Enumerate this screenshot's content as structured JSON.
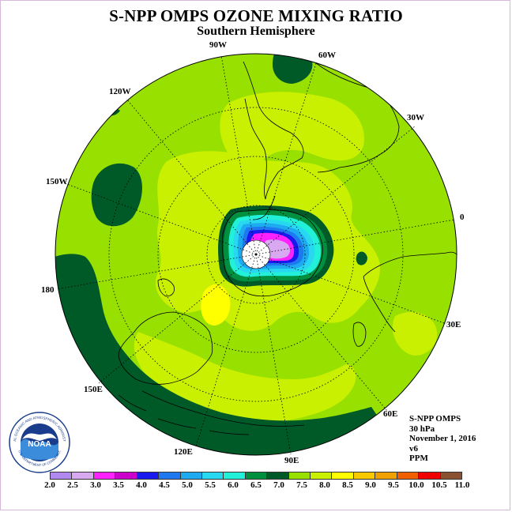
{
  "title": "S-NPP OMPS OZONE MIXING RATIO",
  "subtitle": "Southern Hemisphere",
  "longitude_labels": [
    "90W",
    "60W",
    "30W",
    "0",
    "30E",
    "60E",
    "90E",
    "120E",
    "150E",
    "180",
    "150W",
    "120W"
  ],
  "info": {
    "instrument": "S-NPP OMPS",
    "pressure": "30 hPa",
    "date": "November 1, 2016",
    "version": "v6",
    "units": "PPM"
  },
  "logo": {
    "text": "NOAA",
    "ring_text": "NATIONAL OCEANIC AND ATMOSPHERIC ADMINISTRATION",
    "bottom_text": "U.S. DEPARTMENT OF COMMERCE"
  },
  "colorbar": {
    "labels": [
      "2.0",
      "2.5",
      "3.0",
      "3.5",
      "4.0",
      "4.5",
      "5.0",
      "5.5",
      "6.0",
      "6.5",
      "7.0",
      "7.5",
      "8.0",
      "8.5",
      "9.0",
      "9.5",
      "10.0",
      "10.5",
      "11.0"
    ],
    "colors": [
      "#b088f0",
      "#d8a8f0",
      "#ff22ff",
      "#cc00cc",
      "#1a1aee",
      "#1e78f0",
      "#1eaaf0",
      "#28d8f0",
      "#22f0d8",
      "#009040",
      "#005a28",
      "#98e000",
      "#c8f000",
      "#ffff00",
      "#f8c800",
      "#f0a000",
      "#f06000",
      "#f00000",
      "#8a5030"
    ]
  }
}
